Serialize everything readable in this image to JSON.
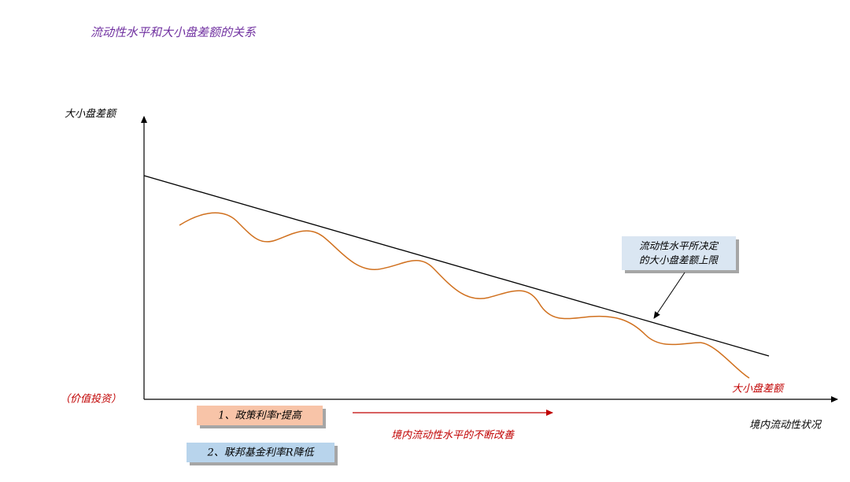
{
  "title": "流动性水平和大小盘差额的关系",
  "y_axis_label": "大小盘差额",
  "y_axis_note": "（价值投资）",
  "x_axis_label": "境内流动性状况",
  "callout": [
    "流动性水平所决定",
    "的大小盘差额上限"
  ],
  "curve_label": "大小盘差额",
  "factors": [
    "1、政策利率r提高",
    "2、联邦基金利率R降低"
  ],
  "arrow_label": "境内流动性水平的不断改善"
}
